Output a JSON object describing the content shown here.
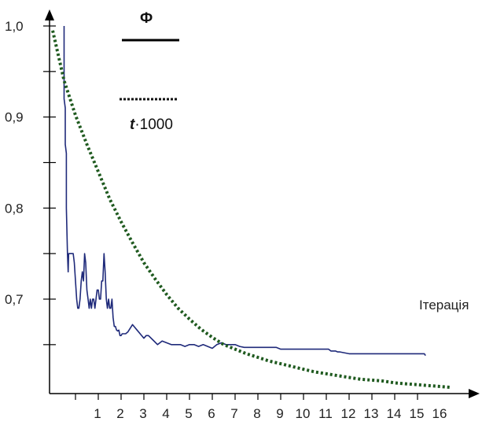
{
  "chart_data": {
    "type": "line",
    "title": "",
    "xlabel": "Ітерація",
    "ylabel": "",
    "xlim": [
      0,
      18
    ],
    "ylim": [
      0.6,
      1.02
    ],
    "x_ticks": [
      1,
      2,
      3,
      4,
      5,
      6,
      7,
      8,
      9,
      10,
      11,
      12,
      13,
      14,
      15,
      16
    ],
    "x_tick_labels": [
      "1",
      "2",
      "3",
      "4",
      "5",
      "6",
      "7",
      "8",
      "9",
      "10",
      "11",
      "12",
      "13",
      "14",
      "15",
      "16"
    ],
    "y_ticks": [
      1.0,
      0.9,
      0.8,
      0.7
    ],
    "y_tick_labels": [
      "1,0",
      "0,9",
      "0,8",
      "0,7"
    ],
    "y_minor_ticks": [
      0.95,
      0.85,
      0.75,
      0.65
    ],
    "grid": false,
    "legend": {
      "placement": "top-left",
      "phi_label": "Ф",
      "t_symbol": "t",
      "t_suffix": "·1000"
    },
    "series": [
      {
        "name": "Ф",
        "style": "solid",
        "color": "#1f2a7a",
        "x": [
          0.5,
          0.5,
          0.55,
          0.55,
          0.6,
          0.6,
          0.65,
          0.68,
          0.7,
          0.75,
          0.8,
          0.82,
          0.85,
          0.9,
          0.95,
          1.0,
          1.05,
          1.1,
          1.15,
          1.2,
          1.25,
          1.3,
          1.35,
          1.4,
          1.45,
          1.5,
          1.55,
          1.6,
          1.65,
          1.7,
          1.75,
          1.8,
          1.85,
          1.9,
          1.95,
          2.0,
          2.05,
          2.1,
          2.15,
          2.2,
          2.25,
          2.3,
          2.35,
          2.4,
          2.45,
          2.5,
          2.55,
          2.6,
          2.65,
          2.7,
          2.75,
          2.8,
          2.85,
          2.9,
          2.95,
          3.0,
          3.05,
          3.1,
          3.2,
          3.3,
          3.5,
          3.7,
          3.9,
          4.0,
          4.1,
          4.2,
          4.4,
          4.6,
          4.8,
          5.0,
          5.2,
          5.4,
          5.6,
          5.8,
          6.0,
          6.2,
          6.4,
          6.6,
          6.8,
          7.0,
          7.2,
          7.4,
          7.6,
          7.8,
          8.0,
          8.2,
          8.4,
          8.6,
          8.8,
          9.0,
          9.2,
          9.4,
          9.6,
          9.8,
          10.0,
          10.2,
          10.4,
          10.6,
          11.0,
          11.4,
          11.8,
          12.0,
          12.1,
          12.2,
          12.4,
          12.5,
          12.6,
          13.0,
          14.0,
          15.0,
          16.0,
          16.3,
          16.35
        ],
        "y": [
          1.0,
          0.92,
          0.91,
          0.87,
          0.86,
          0.8,
          0.75,
          0.73,
          0.75,
          0.75,
          0.75,
          0.75,
          0.75,
          0.75,
          0.74,
          0.72,
          0.7,
          0.69,
          0.69,
          0.7,
          0.72,
          0.73,
          0.72,
          0.75,
          0.74,
          0.71,
          0.7,
          0.69,
          0.7,
          0.69,
          0.7,
          0.7,
          0.69,
          0.7,
          0.71,
          0.71,
          0.7,
          0.7,
          0.72,
          0.72,
          0.75,
          0.73,
          0.7,
          0.69,
          0.7,
          0.69,
          0.69,
          0.7,
          0.68,
          0.67,
          0.67,
          0.666,
          0.665,
          0.666,
          0.66,
          0.66,
          0.662,
          0.662,
          0.662,
          0.664,
          0.672,
          0.666,
          0.66,
          0.657,
          0.66,
          0.66,
          0.655,
          0.65,
          0.654,
          0.652,
          0.65,
          0.65,
          0.65,
          0.648,
          0.65,
          0.65,
          0.648,
          0.65,
          0.648,
          0.646,
          0.65,
          0.652,
          0.65,
          0.65,
          0.65,
          0.648,
          0.647,
          0.647,
          0.647,
          0.647,
          0.647,
          0.647,
          0.647,
          0.647,
          0.645,
          0.645,
          0.645,
          0.645,
          0.645,
          0.645,
          0.645,
          0.645,
          0.645,
          0.643,
          0.643,
          0.642,
          0.642,
          0.64,
          0.64,
          0.64,
          0.64,
          0.64,
          0.638
        ]
      },
      {
        "name": "t·1000",
        "style": "dotted",
        "color": "#1f5a1f",
        "x": [
          0.0,
          0.5,
          1.0,
          1.5,
          2.0,
          2.5,
          3.0,
          3.5,
          4.0,
          4.5,
          5.0,
          5.5,
          6.0,
          6.5,
          7.0,
          7.5,
          8.0,
          8.5,
          9.0,
          9.5,
          10.0,
          10.5,
          11.0,
          11.5,
          12.0,
          12.5,
          13.0,
          13.5,
          14.0,
          14.5,
          15.0,
          15.5,
          16.0,
          16.5,
          17.0,
          17.5
        ],
        "y": [
          0.995,
          0.94,
          0.902,
          0.87,
          0.84,
          0.81,
          0.785,
          0.762,
          0.74,
          0.722,
          0.705,
          0.69,
          0.678,
          0.667,
          0.658,
          0.65,
          0.645,
          0.64,
          0.636,
          0.632,
          0.629,
          0.626,
          0.623,
          0.62,
          0.618,
          0.616,
          0.614,
          0.612,
          0.611,
          0.61,
          0.608,
          0.607,
          0.606,
          0.605,
          0.604,
          0.603
        ]
      }
    ]
  }
}
